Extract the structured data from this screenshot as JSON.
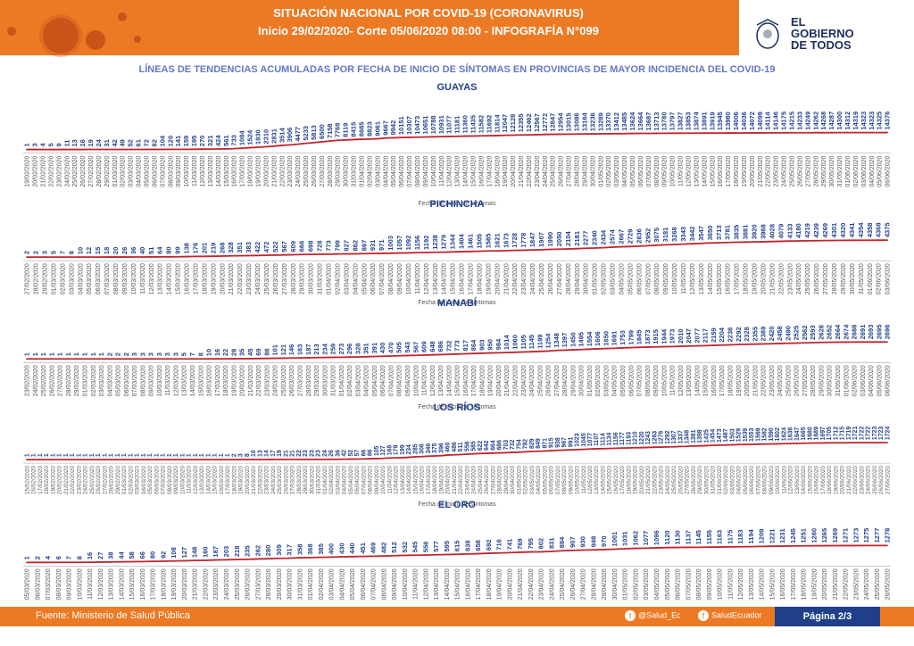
{
  "header": {
    "title": "SITUACIÓN NACIONAL POR  COVID-19 (CORONAVIRUS)",
    "subtitle": "Inicio 29/02/2020- Corte 05/06/2020 08:00  - INFOGRAFÍA N°099",
    "logo_line1": "EL",
    "logo_line2": "GOBIERNO",
    "logo_line3": "DE TODOS",
    "color": "#ec7a24"
  },
  "main_title": "LÍNEAS DE TENDENCIAS ACUMULADAS POR FECHA DE INICIO DE SÍNTOMAS EN PROVINCIAS DE MAYOR INCIDENCIA DEL COVID-19",
  "footer": {
    "source": "Fuente:  Ministerio de Salud Pública",
    "twitter": "@Salud_Ec",
    "facebook": "SaludEcuador",
    "page": "Página 2/3"
  },
  "chart_data": [
    {
      "type": "line",
      "title": "GUAYAS",
      "xlabel": "Fecha de inicio de síntomas",
      "start": "19/02/2020",
      "end": "02/06/2020",
      "values": [
        1,
        3,
        4,
        5,
        9,
        11,
        13,
        16,
        19,
        24,
        31,
        42,
        49,
        52,
        61,
        72,
        82,
        104,
        120,
        141,
        159,
        195,
        270,
        321,
        424,
        561,
        733,
        1084,
        1524,
        1930,
        2310,
        2831,
        3514,
        3906,
        4477,
        5233,
        5813,
        6500,
        7158,
        7768,
        8119,
        8415,
        8685,
        8823,
        9061,
        9667,
        9942,
        10151,
        10307,
        10473,
        10651,
        10788,
        10931,
        11077,
        11181,
        11360,
        11435,
        11582,
        11692,
        11814,
        12047,
        12128,
        12355,
        12462,
        12567,
        12772,
        12847,
        12954,
        13015,
        13086,
        13164,
        13236,
        13289,
        13370,
        13412,
        13485,
        13624,
        13664,
        13687,
        13713,
        13780,
        13797,
        13827,
        13853,
        13874,
        13891,
        13919,
        13945,
        13980,
        14006,
        14036,
        14072,
        14099,
        14114,
        14146,
        14175,
        14215,
        14233,
        14249,
        14262,
        14268,
        14287,
        14300,
        14312,
        14319,
        14323,
        14323,
        14325,
        14376
      ]
    },
    {
      "type": "line",
      "title": "PICHINCHA",
      "xlabel": "Fecha de inicio de síntomas",
      "start": "27/02/2020",
      "end": "02/06/2020",
      "values": [
        2,
        2,
        3,
        5,
        7,
        8,
        10,
        12,
        15,
        18,
        20,
        26,
        36,
        40,
        51,
        64,
        80,
        99,
        138,
        176,
        201,
        219,
        268,
        328,
        351,
        383,
        422,
        472,
        522,
        567,
        609,
        666,
        698,
        728,
        773,
        799,
        827,
        862,
        897,
        931,
        971,
        1003,
        1057,
        1092,
        1156,
        1192,
        1238,
        1279,
        1344,
        1404,
        1461,
        1505,
        1585,
        1621,
        1673,
        1728,
        1778,
        1847,
        1907,
        1990,
        2050,
        2104,
        2181,
        2277,
        2340,
        2434,
        2574,
        2667,
        2729,
        2836,
        2952,
        3075,
        3181,
        3268,
        3343,
        3442,
        3547,
        3650,
        3713,
        3781,
        3835,
        3881,
        3920,
        3968,
        4028,
        4079,
        4133,
        4180,
        4219,
        4239,
        4269,
        4301,
        4320,
        4341,
        4354,
        4358,
        4368,
        4375
      ]
    },
    {
      "type": "line",
      "title": "MANABÍ",
      "xlabel": "Fecha de inicio de síntomas",
      "start": "23/02/2020",
      "end": "29/05/2020",
      "values": [
        1,
        1,
        1,
        1,
        1,
        1,
        1,
        1,
        1,
        1,
        2,
        2,
        2,
        3,
        3,
        3,
        3,
        3,
        3,
        5,
        7,
        8,
        10,
        16,
        22,
        28,
        35,
        45,
        69,
        86,
        101,
        121,
        146,
        163,
        187,
        213,
        234,
        259,
        273,
        296,
        328,
        351,
        391,
        430,
        470,
        505,
        543,
        567,
        609,
        648,
        686,
        732,
        773,
        817,
        864,
        903,
        950,
        984,
        1014,
        1060,
        1105,
        1145,
        1199,
        1254,
        1348,
        1397,
        1450,
        1495,
        1554,
        1606,
        1650,
        1691,
        1753,
        1799,
        1845,
        1873,
        1915,
        1944,
        1973,
        2010,
        2047,
        2077,
        2117,
        2159,
        2204,
        2238,
        2292,
        2328,
        2355,
        2389,
        2420,
        2458,
        2490,
        2525,
        2562,
        2593,
        2628,
        2652,
        2664,
        2674,
        2688,
        2691,
        2693,
        2695,
        2696
      ]
    },
    {
      "type": "line",
      "title": "LOS RÍOS",
      "xlabel": "Fecha de inicio de síntomas",
      "start": "15/02/2020",
      "end": "01/06/2020",
      "values": [
        1,
        1,
        1,
        1,
        1,
        1,
        1,
        1,
        1,
        1,
        1,
        1,
        1,
        1,
        1,
        1,
        1,
        1,
        1,
        1,
        1,
        1,
        1,
        1,
        1,
        1,
        1,
        1,
        1,
        1,
        1,
        1,
        2,
        3,
        8,
        10,
        13,
        14,
        17,
        19,
        21,
        21,
        22,
        23,
        23,
        23,
        24,
        26,
        36,
        42,
        52,
        57,
        66,
        86,
        105,
        127,
        168,
        179,
        199,
        234,
        285,
        308,
        346,
        375,
        396,
        460,
        486,
        511,
        556,
        585,
        622,
        642,
        664,
        686,
        703,
        732,
        754,
        792,
        829,
        849,
        871,
        915,
        938,
        967,
        991,
        1023,
        1045,
        1077,
        1107,
        1114,
        1134,
        1156,
        1177,
        1193,
        1210,
        1220,
        1243,
        1263,
        1276,
        1292,
        1307,
        1337,
        1348,
        1381,
        1398,
        1425,
        1454,
        1473,
        1487,
        1503,
        1529,
        1539,
        1553,
        1569,
        1582,
        1590,
        1602,
        1624,
        1636,
        1647,
        1665,
        1680,
        1689,
        1697,
        1705,
        1712,
        1715,
        1719,
        1721,
        1722,
        1722,
        1723,
        1723,
        1724
      ]
    },
    {
      "type": "line",
      "title": "EL ORO",
      "xlabel": "Fecha de inicio de síntomas",
      "start": "05/03/2020",
      "end": "02/06/2020",
      "values": [
        1,
        2,
        4,
        6,
        7,
        8,
        16,
        27,
        38,
        44,
        58,
        66,
        80,
        92,
        108,
        127,
        148,
        160,
        187,
        203,
        218,
        235,
        262,
        280,
        309,
        317,
        358,
        368,
        385,
        400,
        430,
        440,
        451,
        469,
        482,
        512,
        532,
        545,
        556,
        577,
        595,
        615,
        638,
        658,
        692,
        716,
        741,
        769,
        795,
        802,
        831,
        884,
        907,
        930,
        948,
        970,
        1001,
        1031,
        1062,
        1077,
        1096,
        1120,
        1130,
        1137,
        1145,
        1155,
        1163,
        1175,
        1183,
        1194,
        1209,
        1221,
        1231,
        1245,
        1251,
        1260,
        1265,
        1269,
        1271,
        1273,
        1275,
        1277,
        1278
      ]
    }
  ]
}
